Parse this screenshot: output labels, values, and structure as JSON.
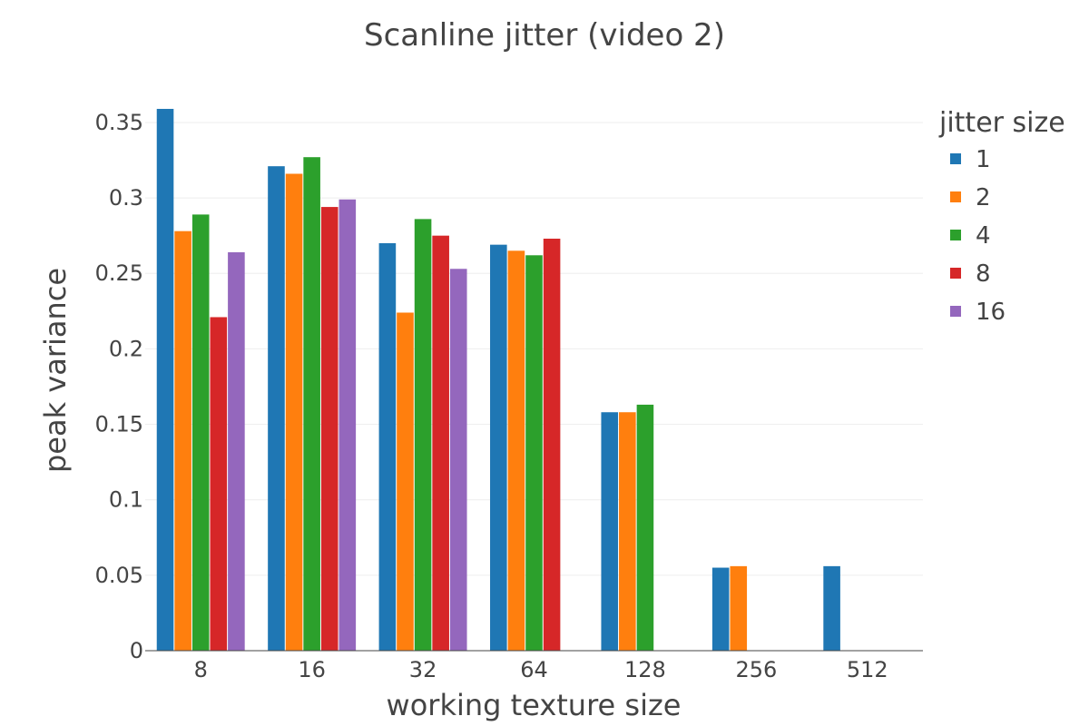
{
  "chart_data": {
    "type": "bar",
    "title": "Scanline jitter (video 2)",
    "xlabel": "working texture size",
    "ylabel": "peak variance",
    "categories": [
      "8",
      "16",
      "32",
      "64",
      "128",
      "256",
      "512"
    ],
    "ylim": [
      0,
      0.365
    ],
    "yticks": [
      0,
      0.05,
      0.1,
      0.15,
      0.2,
      0.25,
      0.3,
      0.35
    ],
    "ytick_labels": [
      "0",
      "0.05",
      "0.1",
      "0.15",
      "0.2",
      "0.25",
      "0.3",
      "0.35"
    ],
    "grid": true,
    "legend": {
      "title": "jitter size",
      "position": "right"
    },
    "series": [
      {
        "name": "1",
        "color": "#1f77b4",
        "values": [
          0.359,
          0.321,
          0.27,
          0.269,
          0.158,
          0.055,
          0.056
        ]
      },
      {
        "name": "2",
        "color": "#ff7f0e",
        "values": [
          0.278,
          0.316,
          0.224,
          0.265,
          0.158,
          0.056,
          null
        ]
      },
      {
        "name": "4",
        "color": "#2ca02c",
        "values": [
          0.289,
          0.327,
          0.286,
          0.262,
          0.163,
          null,
          null
        ]
      },
      {
        "name": "8",
        "color": "#d62728",
        "values": [
          0.221,
          0.294,
          0.275,
          0.273,
          null,
          null,
          null
        ]
      },
      {
        "name": "16",
        "color": "#9467bd",
        "values": [
          0.264,
          0.299,
          0.253,
          null,
          null,
          null,
          null
        ]
      }
    ]
  }
}
